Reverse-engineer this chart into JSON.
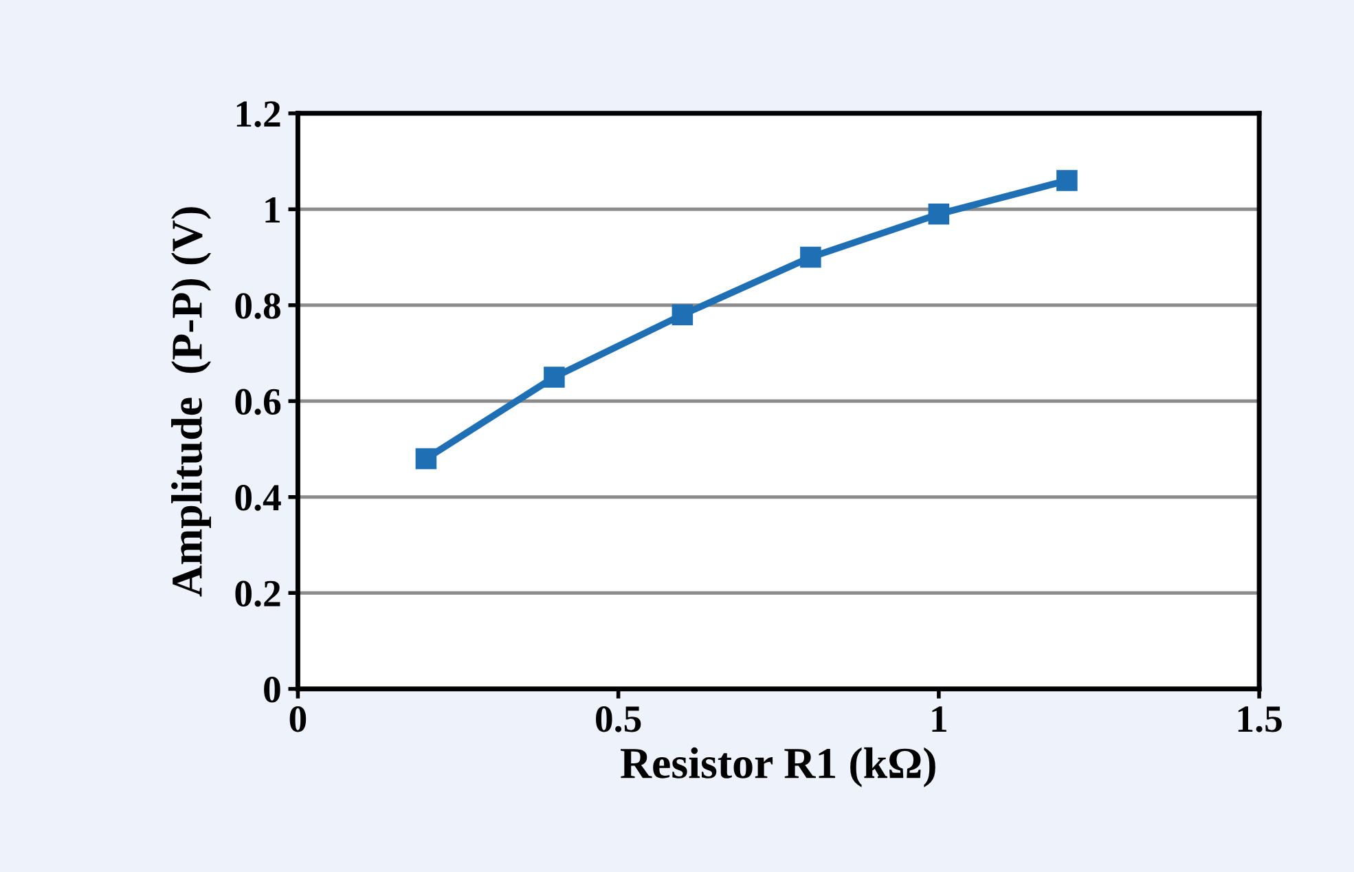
{
  "chart_data": {
    "type": "line",
    "xlabel": "Resistor R1 (kΩ)",
    "ylabel": "Amplitude  (P-P) (V)",
    "x": [
      0.2,
      0.4,
      0.6,
      0.8,
      1.0,
      1.2
    ],
    "series": [
      {
        "color": "#1f6fb5",
        "values": [
          0.48,
          0.65,
          0.78,
          0.9,
          0.99,
          1.06
        ]
      }
    ],
    "xlim": [
      0,
      1.5
    ],
    "xticks": [
      0,
      0.5,
      1,
      1.5
    ],
    "ylim": [
      0,
      1.2
    ],
    "yticks": [
      0,
      0.2,
      0.4,
      0.6,
      0.8,
      1,
      1.2
    ],
    "grid": "y",
    "marker": "square",
    "line_style": "solid"
  }
}
